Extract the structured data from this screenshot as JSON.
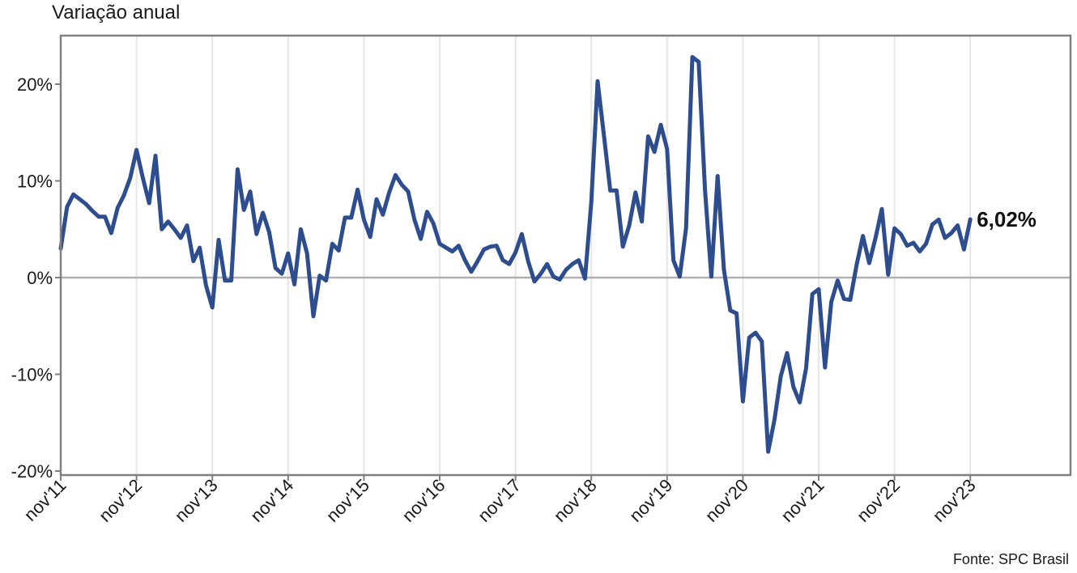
{
  "chart_data": {
    "type": "line",
    "title": "",
    "ylabel": "Variação anual",
    "source": "Fonte: SPC Brasil",
    "ylim": [
      -20,
      25
    ],
    "yticks": [
      20,
      10,
      0,
      -10,
      -20
    ],
    "ytick_labels": [
      "20%",
      "10%",
      "0%",
      "-10%",
      "-20%"
    ],
    "xtick_labels": [
      "nov'11",
      "nov'12",
      "nov'13",
      "nov'14",
      "nov'15",
      "nov'16",
      "nov'17",
      "nov'18",
      "nov'19",
      "nov'20",
      "nov'21",
      "nov'22",
      "nov'23"
    ],
    "end_label": "6,02%",
    "grid": "vertical",
    "line_color": "#2e4d8e",
    "series": [
      {
        "values": [
          3.0,
          7.3,
          8.6,
          8.1,
          7.6,
          6.9,
          6.3,
          6.3,
          4.6,
          7.2,
          8.5,
          10.3,
          13.2,
          10.3,
          7.7,
          12.6,
          5.0,
          5.8,
          5.0,
          4.1,
          5.4,
          1.7,
          3.1,
          -0.8,
          -3.1,
          3.9,
          -0.3,
          -0.3,
          11.2,
          7.0,
          8.9,
          4.5,
          6.7,
          4.7,
          1.0,
          0.4,
          2.5,
          -0.7,
          5.0,
          2.5,
          -4.0,
          0.2,
          -0.3,
          3.5,
          2.8,
          6.2,
          6.2,
          9.1,
          6.0,
          4.2,
          8.1,
          6.5,
          8.8,
          10.6,
          9.6,
          8.9,
          6.0,
          4.0,
          6.8,
          5.6,
          3.5,
          3.1,
          2.7,
          3.3,
          1.8,
          0.6,
          1.7,
          2.9,
          3.2,
          3.3,
          1.8,
          1.4,
          2.6,
          4.5,
          1.7,
          -0.4,
          0.4,
          1.4,
          0.1,
          -0.2,
          0.8,
          1.4,
          1.8,
          -0.1,
          7.8,
          20.3,
          14.7,
          9.0,
          9.0,
          3.2,
          5.4,
          8.8,
          5.8,
          14.6,
          13.0,
          15.8,
          13.3,
          1.8,
          0.1,
          5.1,
          22.8,
          22.3,
          9.1,
          0.1,
          10.5,
          0.8,
          -3.4,
          -3.7,
          -12.8,
          -6.2,
          -5.7,
          -6.6,
          -18.0,
          -14.7,
          -10.2,
          -7.8,
          -11.3,
          -12.9,
          -9.4,
          -1.7,
          -1.2,
          -9.3,
          -2.5,
          -0.3,
          -2.2,
          -2.3,
          1.3,
          4.3,
          1.5,
          4.1,
          7.1,
          0.3,
          5.1,
          4.5,
          3.3,
          3.6,
          2.7,
          3.5,
          5.5,
          6.0,
          4.1,
          4.6,
          5.4,
          2.9,
          6.02
        ]
      }
    ]
  }
}
